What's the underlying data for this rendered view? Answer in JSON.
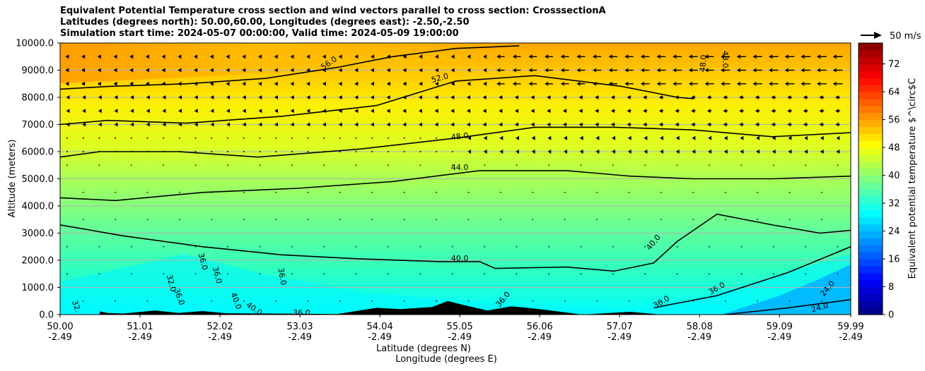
{
  "chart_data": {
    "type": "contour-cross-section",
    "title_lines": [
      "Equivalent Potential Temperature cross section and wind vectors parallel to cross section: CrosssectionA",
      "Latitudes (degrees north): 50.00,60.00, Longitudes (degrees east): -2.50,-2.50",
      "Simulation start time: 2024-05-07 00:00:00, Valid time: 2024-05-09 19:00:00"
    ],
    "ylabel": "Altitude (meters)",
    "xlabel_lat": "Latitude (degrees N)",
    "xlabel_lon": "Longitude (degrees E)",
    "ylim": [
      0,
      10000
    ],
    "xlim": [
      50.0,
      59.99
    ],
    "y_ticks": [
      "0.0",
      "1000.0",
      "2000.0",
      "3000.0",
      "4000.0",
      "5000.0",
      "6000.0",
      "7000.0",
      "8000.0",
      "9000.0",
      "10000.0"
    ],
    "y_tick_values": [
      0,
      1000,
      2000,
      3000,
      4000,
      5000,
      6000,
      7000,
      8000,
      9000,
      10000
    ],
    "x_ticks_lat": [
      "50.00",
      "51.01",
      "52.02",
      "53.03",
      "54.04",
      "55.05",
      "56.06",
      "57.07",
      "58.08",
      "59.09",
      "59.99"
    ],
    "x_ticks_lon": [
      "-2.49",
      "-2.49",
      "-2.49",
      "-2.49",
      "-2.49",
      "-2.49",
      "-2.49",
      "-2.49",
      "-2.49",
      "-2.49",
      "-2.49"
    ],
    "x_tick_values": [
      50.0,
      51.01,
      52.02,
      53.03,
      54.04,
      55.05,
      56.06,
      57.07,
      58.08,
      59.09,
      59.99
    ],
    "colorbar_label": "Equivalent potential temperature $^\\circ$C",
    "colorbar_ticks": [
      "0",
      "8",
      "16",
      "24",
      "32",
      "40",
      "48",
      "56",
      "64",
      "72"
    ],
    "colorbar_tick_values": [
      0,
      8,
      16,
      24,
      32,
      40,
      48,
      56,
      64,
      72
    ],
    "colorbar_range": [
      0,
      78
    ],
    "quiver_key_label": "50 m/s",
    "contours": [
      {
        "level": "24.0",
        "points": [
          [
            58.4,
            0
          ],
          [
            59.2,
            250
          ],
          [
            59.99,
            550
          ]
        ]
      },
      {
        "level": "36.0",
        "points": [
          [
            57.5,
            250
          ],
          [
            58.3,
            700
          ],
          [
            59.2,
            1550
          ],
          [
            59.99,
            2500
          ]
        ]
      },
      {
        "level": "40.0",
        "points": [
          [
            50.0,
            3300
          ],
          [
            50.8,
            2900
          ],
          [
            51.8,
            2500
          ],
          [
            52.8,
            2200
          ],
          [
            53.8,
            2050
          ],
          [
            54.8,
            1950
          ],
          [
            55.3,
            1950
          ],
          [
            55.5,
            1700
          ],
          [
            56.4,
            1750
          ],
          [
            57.0,
            1600
          ],
          [
            57.5,
            1900
          ],
          [
            57.8,
            2700
          ],
          [
            58.3,
            3700
          ],
          [
            59.0,
            3300
          ],
          [
            59.6,
            3000
          ],
          [
            59.99,
            3100
          ]
        ]
      },
      {
        "level": "44.0",
        "points": [
          [
            50.0,
            4300
          ],
          [
            50.7,
            4200
          ],
          [
            51.8,
            4500
          ],
          [
            53.0,
            4650
          ],
          [
            54.2,
            4900
          ],
          [
            55.3,
            5300
          ],
          [
            56.4,
            5300
          ],
          [
            57.2,
            5100
          ],
          [
            58.0,
            5000
          ],
          [
            59.0,
            5000
          ],
          [
            59.99,
            5100
          ]
        ]
      },
      {
        "level": "48.0",
        "points": [
          [
            50.0,
            5800
          ],
          [
            50.5,
            6000
          ],
          [
            51.5,
            6000
          ],
          [
            52.5,
            5800
          ],
          [
            53.8,
            6100
          ],
          [
            55.0,
            6500
          ],
          [
            56.0,
            6900
          ],
          [
            57.0,
            6900
          ],
          [
            58.0,
            6800
          ],
          [
            59.0,
            6550
          ],
          [
            59.99,
            6700
          ]
        ]
      },
      {
        "level": "52.0",
        "points": [
          [
            50.0,
            7000
          ],
          [
            50.6,
            7150
          ],
          [
            51.6,
            7050
          ],
          [
            52.8,
            7300
          ],
          [
            54.0,
            7700
          ],
          [
            55.0,
            8600
          ],
          [
            56.0,
            8800
          ],
          [
            57.1,
            8400
          ],
          [
            57.8,
            8000
          ],
          [
            58.0,
            7950
          ]
        ]
      },
      {
        "level": "56.0",
        "points": [
          [
            50.0,
            8300
          ],
          [
            50.6,
            8400
          ],
          [
            51.6,
            8500
          ],
          [
            52.6,
            8700
          ],
          [
            53.5,
            9100
          ],
          [
            54.2,
            9500
          ],
          [
            55.0,
            9800
          ],
          [
            55.8,
            9900
          ]
        ]
      }
    ],
    "terrain": [
      [
        50.5,
        120
      ],
      [
        50.6,
        60
      ],
      [
        50.8,
        40
      ],
      [
        51.2,
        150
      ],
      [
        51.5,
        60
      ],
      [
        51.8,
        130
      ],
      [
        52.1,
        50
      ],
      [
        52.6,
        40
      ],
      [
        53.5,
        20
      ],
      [
        54.0,
        250
      ],
      [
        54.3,
        200
      ],
      [
        54.7,
        280
      ],
      [
        54.9,
        500
      ],
      [
        55.1,
        350
      ],
      [
        55.4,
        150
      ],
      [
        55.7,
        300
      ],
      [
        55.9,
        250
      ],
      [
        56.2,
        150
      ],
      [
        56.6,
        0
      ],
      [
        57.2,
        100
      ],
      [
        57.6,
        0
      ]
    ],
    "contour_labels": [
      {
        "text": "56.0",
        "x": 53.4,
        "y": 9250,
        "rot": -35
      },
      {
        "text": "52.0",
        "x": 54.8,
        "y": 8700,
        "rot": -15
      },
      {
        "text": "48.0",
        "x": 55.05,
        "y": 6550,
        "rot": -6
      },
      {
        "text": "44.0",
        "x": 55.05,
        "y": 5400,
        "rot": 0
      },
      {
        "text": "40.0",
        "x": 55.05,
        "y": 2050,
        "rot": 0
      },
      {
        "text": "40.0",
        "x": 57.5,
        "y": 2650,
        "rot": -50
      },
      {
        "text": "36.0",
        "x": 58.3,
        "y": 950,
        "rot": -30
      },
      {
        "text": "36.0",
        "x": 57.6,
        "y": 450,
        "rot": -30
      },
      {
        "text": "24.0",
        "x": 59.6,
        "y": 250,
        "rot": -15
      },
      {
        "text": "24.0",
        "x": 59.7,
        "y": 950,
        "rot": -50
      },
      {
        "text": "48.0",
        "x": 58.13,
        "y": 9250,
        "rot": -85
      },
      {
        "text": "48.0",
        "x": 58.4,
        "y": 9400,
        "rot": 90
      },
      {
        "text": "36.0",
        "x": 51.8,
        "y": 1950,
        "rot": 75
      },
      {
        "text": "36.0",
        "x": 51.98,
        "y": 1450,
        "rot": 75
      },
      {
        "text": "36.0",
        "x": 52.8,
        "y": 1400,
        "rot": 80
      },
      {
        "text": "32.0",
        "x": 51.4,
        "y": 1150,
        "rot": 75
      },
      {
        "text": "36.0",
        "x": 51.5,
        "y": 650,
        "rot": 70
      },
      {
        "text": "40.0",
        "x": 52.22,
        "y": 500,
        "rot": 70
      },
      {
        "text": "40.0",
        "x": 52.45,
        "y": 200,
        "rot": 35
      },
      {
        "text": "32.",
        "x": 50.2,
        "y": 300,
        "rot": 70
      },
      {
        "text": "36.0",
        "x": 53.05,
        "y": 50,
        "rot": 0
      },
      {
        "text": "36.0",
        "x": 55.6,
        "y": 550,
        "rot": -50
      }
    ],
    "wind_rows": [
      {
        "altitude": 9500,
        "strength": "strong"
      },
      {
        "altitude": 9000,
        "strength": "strong"
      },
      {
        "altitude": 8500,
        "strength": "strong"
      },
      {
        "altitude": 8000,
        "strength": "medium"
      },
      {
        "altitude": 7500,
        "strength": "medium"
      },
      {
        "altitude": 7000,
        "strength": "medium"
      },
      {
        "altitude": 6500,
        "strength": "weak"
      },
      {
        "altitude": 6000,
        "strength": "weak"
      }
    ]
  }
}
